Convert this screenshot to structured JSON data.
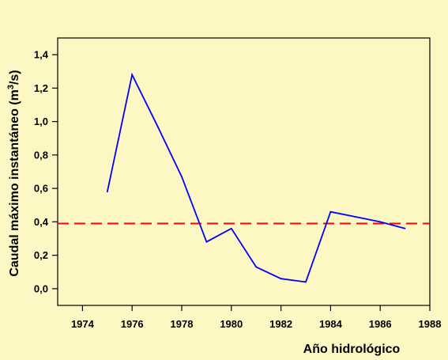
{
  "chart_data": {
    "type": "line",
    "title": "",
    "xlabel": "Año hidrológico",
    "ylabel": {
      "prefix": "Caudal máximo instantáneo (m",
      "superscript": "3",
      "suffix": "/s)"
    },
    "xlim": [
      1973,
      1988
    ],
    "ylim": [
      -0.1,
      1.5
    ],
    "xticks": [
      1974,
      1976,
      1978,
      1980,
      1982,
      1984,
      1986,
      1988
    ],
    "yticks": [
      0.0,
      0.2,
      0.4,
      0.6,
      0.8,
      1.0,
      1.2,
      1.4
    ],
    "yticklabels": [
      "0,0",
      "0,2",
      "0,4",
      "0,6",
      "0,8",
      "1,0",
      "1,2",
      "1,4"
    ],
    "grid": false,
    "legend": "none",
    "series": [
      {
        "color": "#0000ff",
        "style": "solid",
        "x": [
          1975,
          1976,
          1977,
          1978,
          1979,
          1980,
          1981,
          1982,
          1983,
          1984,
          1985,
          1986,
          1987
        ],
        "y": [
          0.58,
          1.28,
          0.98,
          0.67,
          0.28,
          0.36,
          0.13,
          0.06,
          0.04,
          0.46,
          0.43,
          0.4,
          0.36
        ]
      }
    ],
    "reference_lines": [
      {
        "orientation": "horizontal",
        "y": 0.39,
        "color": "#ff0000",
        "style": "dashed"
      }
    ],
    "colors": {
      "background": "#fdf7c3",
      "axis": "#000000"
    }
  }
}
